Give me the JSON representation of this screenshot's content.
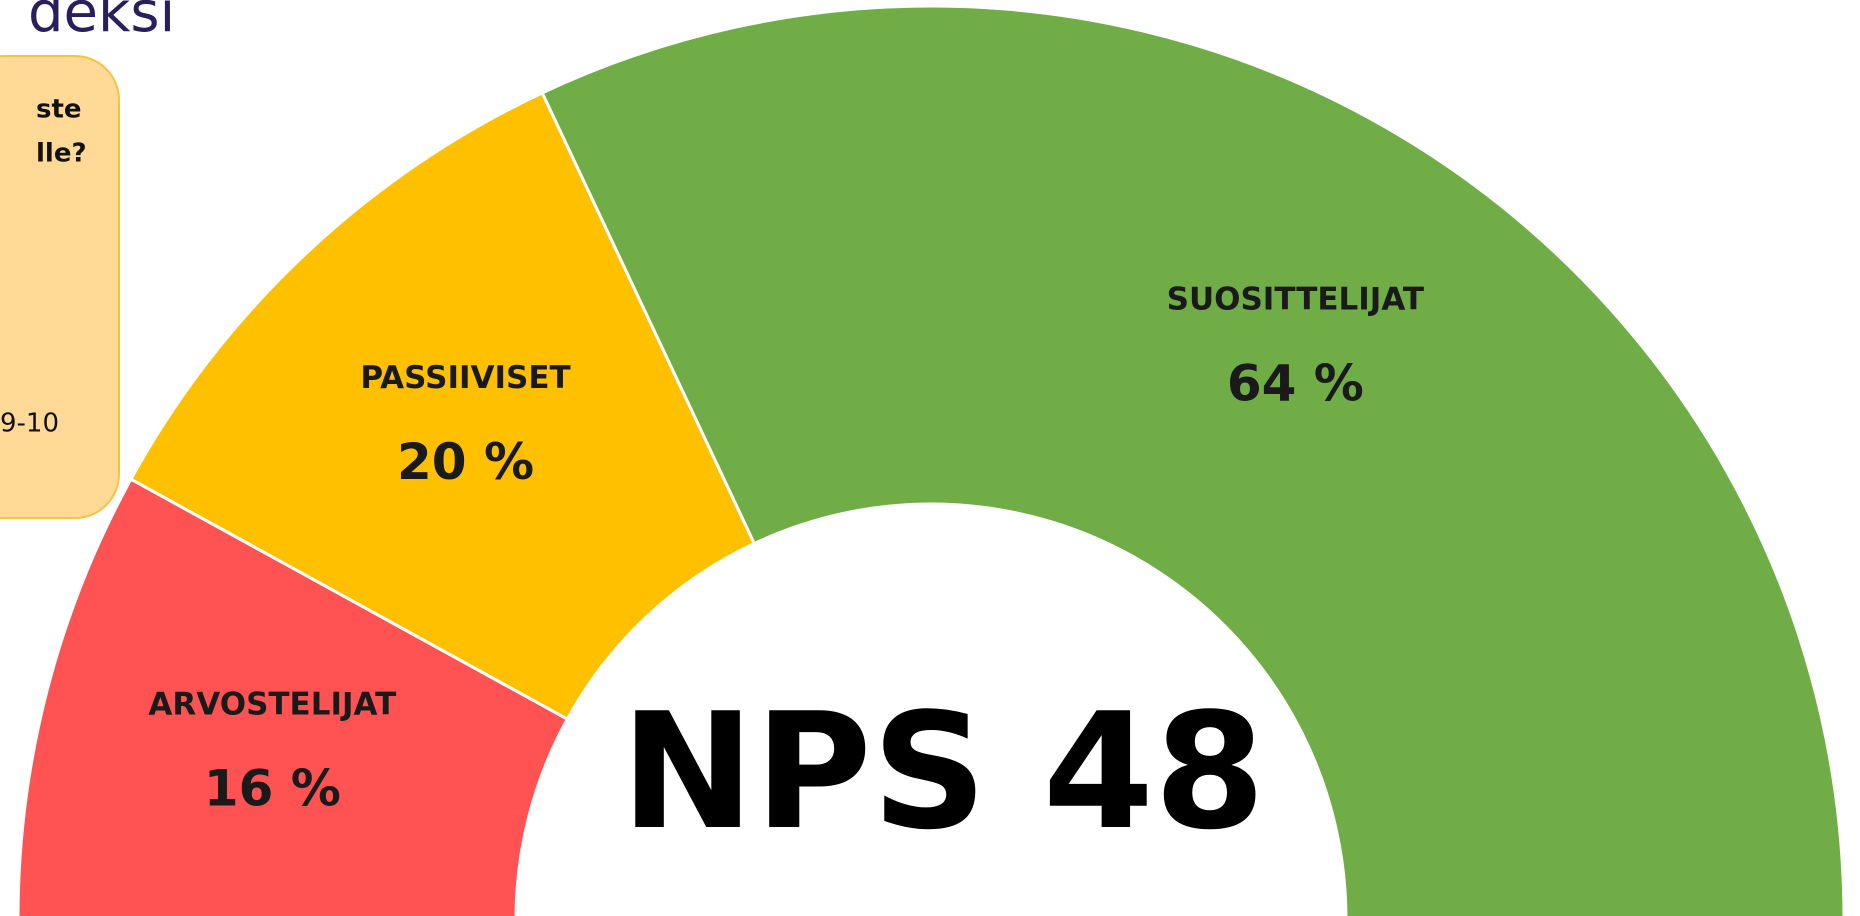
{
  "header": {
    "title": "deksi"
  },
  "info_box": {
    "lines": [
      "ste",
      "lle?"
    ],
    "scale_note": "9-10"
  },
  "chart_data": {
    "type": "pie",
    "categories": [
      "ARVOSTELIJAT",
      "PASSIIVISET",
      "SUOSITTELIJAT"
    ],
    "values": [
      16,
      20,
      64
    ],
    "value_labels": [
      "16 %",
      "20 %",
      "64 %"
    ],
    "colors": [
      "#ff5252",
      "#ffc000",
      "#70ad47"
    ],
    "center_label": "NPS 48"
  }
}
